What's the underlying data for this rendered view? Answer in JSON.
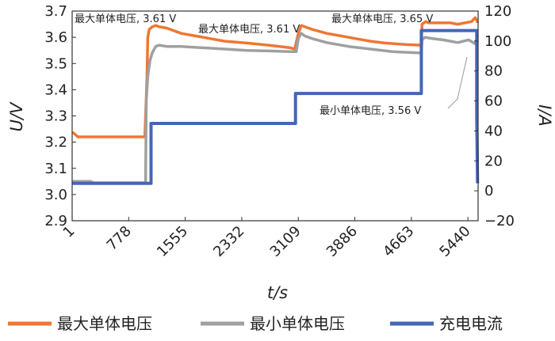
{
  "chart_data": {
    "type": "line",
    "xlabel": "t/s",
    "ylabel_left": "U/V",
    "ylabel_right": "I/A",
    "x_ticks": [
      1,
      778,
      1555,
      2332,
      3109,
      3886,
      4663,
      5440
    ],
    "xlim": [
      1,
      5580
    ],
    "ylim_left": [
      2.9,
      3.7
    ],
    "y_ticks_left": [
      "2.9",
      "3.0",
      "3.1",
      "3.2",
      "3.3",
      "3.4",
      "3.5",
      "3.6",
      "3.7"
    ],
    "ylim_right": [
      -20,
      120
    ],
    "y_ticks_right": [
      "−20",
      "0",
      "20",
      "40",
      "60",
      "80",
      "100",
      "120"
    ],
    "grid": false,
    "legend_position": "bottom",
    "colors": {
      "max": "#ee7733",
      "min": "#a0a0a0",
      "current": "#4466b8"
    },
    "series": [
      {
        "name": "最大单体电压",
        "axis": "left",
        "color": "#ee7733",
        "x": [
          1,
          20,
          80,
          150,
          1000,
          1030,
          1040,
          1060,
          1100,
          1150,
          1200,
          1300,
          1400,
          1500,
          1700,
          1900,
          2100,
          2400,
          2700,
          3000,
          3060,
          3110,
          3150,
          3200,
          3300,
          3500,
          3700,
          3900,
          4100,
          4300,
          4600,
          4800,
          4810,
          4860,
          4900,
          5000,
          5200,
          5300,
          5400,
          5490,
          5540,
          5560,
          5575
        ],
        "y": [
          3.235,
          3.235,
          3.22,
          3.22,
          3.22,
          3.45,
          3.6,
          3.63,
          3.64,
          3.645,
          3.64,
          3.635,
          3.625,
          3.615,
          3.605,
          3.595,
          3.585,
          3.578,
          3.57,
          3.56,
          3.555,
          3.615,
          3.645,
          3.64,
          3.63,
          3.615,
          3.605,
          3.595,
          3.585,
          3.578,
          3.572,
          3.57,
          3.65,
          3.66,
          3.655,
          3.655,
          3.655,
          3.65,
          3.655,
          3.66,
          3.675,
          3.665,
          3.655
        ]
      },
      {
        "name": "最小单体电压",
        "axis": "left",
        "color": "#a0a0a0",
        "x": [
          1,
          250,
          300,
          1010,
          1020,
          1040,
          1070,
          1100,
          1150,
          1200,
          1300,
          1500,
          1800,
          2100,
          2400,
          2700,
          3000,
          3080,
          3110,
          3150,
          3200,
          3300,
          3500,
          3800,
          4100,
          4400,
          4800,
          4810,
          4850,
          4950,
          5100,
          5300,
          5450,
          5540,
          5570
        ],
        "y": [
          3.05,
          3.05,
          3.045,
          3.045,
          3.36,
          3.45,
          3.51,
          3.54,
          3.565,
          3.57,
          3.565,
          3.565,
          3.56,
          3.555,
          3.55,
          3.548,
          3.545,
          3.545,
          3.595,
          3.615,
          3.605,
          3.595,
          3.58,
          3.565,
          3.555,
          3.545,
          3.54,
          3.59,
          3.6,
          3.595,
          3.59,
          3.58,
          3.59,
          3.575,
          3.6
        ]
      },
      {
        "name": "充电电流",
        "axis": "right",
        "color": "#4466b8",
        "x": [
          1,
          1085,
          1085,
          3070,
          3070,
          4800,
          4800,
          5562,
          5562,
          5572
        ],
        "y": [
          5,
          5,
          45,
          45,
          65,
          65,
          107,
          107,
          50,
          5
        ]
      }
    ],
    "annotations": [
      {
        "text": "最大单体电压, 3.61 V",
        "position": "top-left"
      },
      {
        "text": "最大单体电压, 3.61 V",
        "position": "top-center"
      },
      {
        "text": "最大单体电压, 3.65 V",
        "position": "top-right"
      },
      {
        "text": "最小单体电压, 3.56 V",
        "position": "right-middle"
      }
    ]
  }
}
